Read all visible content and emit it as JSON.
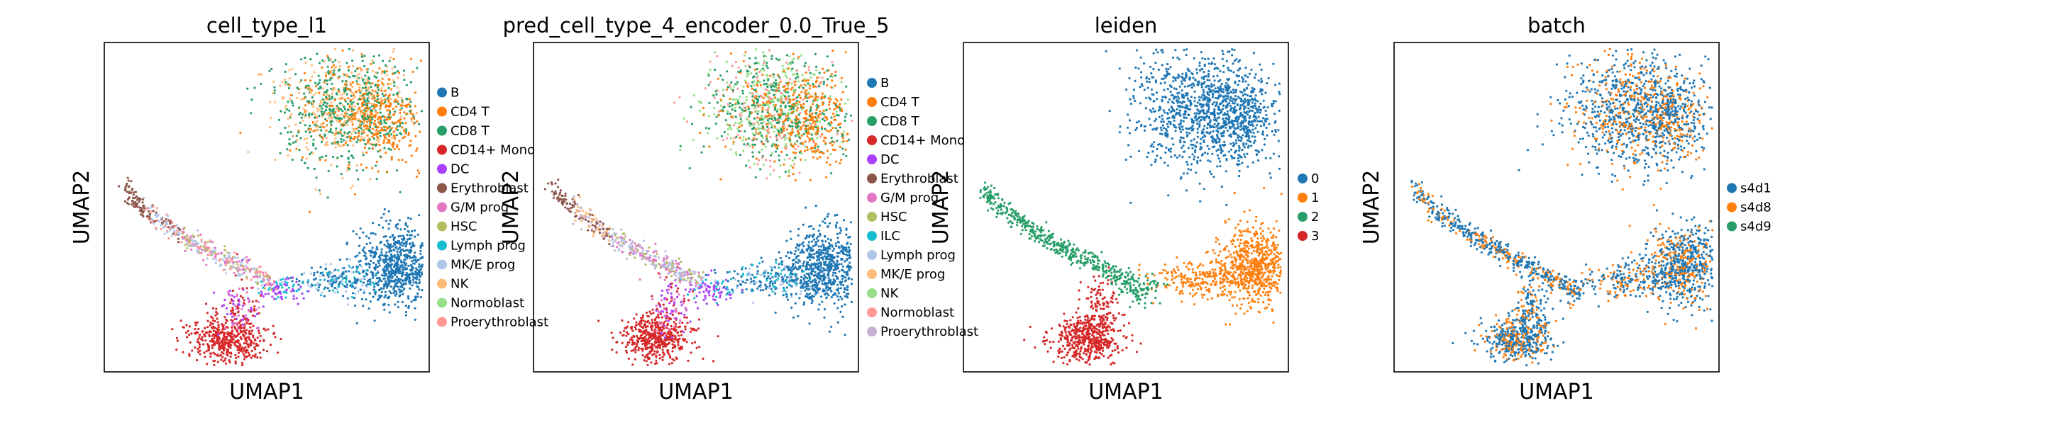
{
  "chart_data": [
    {
      "type": "scatter",
      "title": "cell_type_l1",
      "xlabel": "UMAP1",
      "ylabel": "UMAP2",
      "legend_position": "right",
      "series": [
        {
          "name": "B",
          "color": "#1f77b4"
        },
        {
          "name": "CD4 T",
          "color": "#ff7f0e"
        },
        {
          "name": "CD8 T",
          "color": "#279e68"
        },
        {
          "name": "CD14+ Mono",
          "color": "#d62728"
        },
        {
          "name": "DC",
          "color": "#aa40fc"
        },
        {
          "name": "Erythroblast",
          "color": "#8c564b"
        },
        {
          "name": "G/M prog",
          "color": "#e377c2"
        },
        {
          "name": "HSC",
          "color": "#b5bd61"
        },
        {
          "name": "Lymph prog",
          "color": "#17becf"
        },
        {
          "name": "MK/E prog",
          "color": "#aec7e8"
        },
        {
          "name": "NK",
          "color": "#ffbb78"
        },
        {
          "name": "Normoblast",
          "color": "#98df8a"
        },
        {
          "name": "Proerythroblast",
          "color": "#ff9896"
        }
      ]
    },
    {
      "type": "scatter",
      "title": "pred_cell_type_4_encoder_0.0_True_5",
      "xlabel": "UMAP1",
      "ylabel": "UMAP2",
      "legend_position": "right",
      "series": [
        {
          "name": "B",
          "color": "#1f77b4"
        },
        {
          "name": "CD4 T",
          "color": "#ff7f0e"
        },
        {
          "name": "CD8 T",
          "color": "#279e68"
        },
        {
          "name": "CD14+ Mono",
          "color": "#d62728"
        },
        {
          "name": "DC",
          "color": "#aa40fc"
        },
        {
          "name": "Erythroblast",
          "color": "#8c564b"
        },
        {
          "name": "G/M prog",
          "color": "#e377c2"
        },
        {
          "name": "HSC",
          "color": "#b5bd61"
        },
        {
          "name": "ILC",
          "color": "#17becf"
        },
        {
          "name": "Lymph prog",
          "color": "#aec7e8"
        },
        {
          "name": "MK/E prog",
          "color": "#ffbb78"
        },
        {
          "name": "NK",
          "color": "#98df8a"
        },
        {
          "name": "Normoblast",
          "color": "#ff9896"
        },
        {
          "name": "Proerythroblast",
          "color": "#c5b0d5"
        }
      ]
    },
    {
      "type": "scatter",
      "title": "leiden",
      "xlabel": "UMAP1",
      "ylabel": "UMAP2",
      "legend_position": "right",
      "series": [
        {
          "name": "0",
          "color": "#1f77b4"
        },
        {
          "name": "1",
          "color": "#ff7f0e"
        },
        {
          "name": "2",
          "color": "#279e68"
        },
        {
          "name": "3",
          "color": "#d62728"
        }
      ]
    },
    {
      "type": "scatter",
      "title": "batch",
      "xlabel": "UMAP1",
      "ylabel": "UMAP2",
      "legend_position": "right",
      "series": [
        {
          "name": "s4d1",
          "color": "#1f77b4"
        },
        {
          "name": "s4d8",
          "color": "#ff7f0e"
        },
        {
          "name": "s4d9",
          "color": "#279e68"
        }
      ]
    }
  ]
}
